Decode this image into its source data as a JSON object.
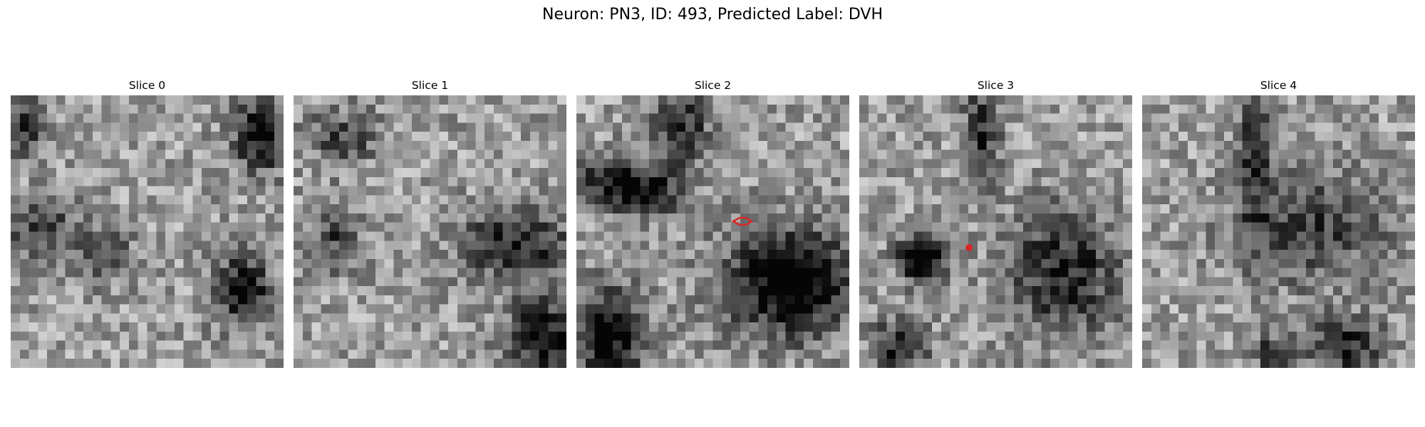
{
  "figure": {
    "title": "Neuron: PN3, ID: 493, Predicted Label: DVH"
  },
  "panels": [
    {
      "title": "Slice 0"
    },
    {
      "title": "Slice 1"
    },
    {
      "title": "Slice 2"
    },
    {
      "title": "Slice 3"
    },
    {
      "title": "Slice 4"
    }
  ],
  "colors": {
    "marker": "#d62728",
    "colormap": "gray"
  }
}
